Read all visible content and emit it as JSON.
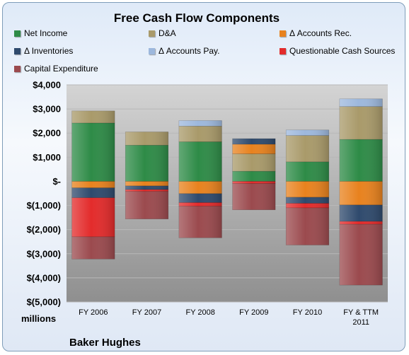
{
  "chart_data": {
    "type": "bar",
    "stacked": true,
    "title": "Free Cash Flow Components",
    "company": "Baker Hughes",
    "ylabel": "millions",
    "ylim": [
      -5000,
      4000
    ],
    "yticks": [
      4000,
      3000,
      2000,
      1000,
      0,
      -1000,
      -2000,
      -3000,
      -4000,
      -5000
    ],
    "ytick_labels": [
      "$4,000",
      "$3,000",
      "$2,000",
      "$1,000",
      "$-",
      "$(1,000)",
      "$(2,000)",
      "$(3,000)",
      "$(4,000)",
      "$(5,000)"
    ],
    "grid": true,
    "legend_position": "top",
    "categories": [
      [
        "FY 2006"
      ],
      [
        "FY 2007"
      ],
      [
        "FY 2008"
      ],
      [
        "FY 2009"
      ],
      [
        "FY 2010"
      ],
      [
        "FY & TTM",
        "2011"
      ]
    ],
    "series": [
      {
        "name": "Net Income",
        "color": "#2e8b47",
        "values": [
          2420,
          1500,
          1640,
          420,
          810,
          1740
        ]
      },
      {
        "name": "D&A",
        "color": "#a99a6a",
        "values": [
          500,
          550,
          650,
          720,
          1090,
          1360
        ]
      },
      {
        "name": "Δ Accounts Rec.",
        "color": "#e8821e",
        "values": [
          -270,
          -190,
          -510,
          400,
          -660,
          -980
        ]
      },
      {
        "name": "Δ Inventories",
        "color": "#2f4a6d",
        "values": [
          -410,
          -150,
          -370,
          230,
          -250,
          -680
        ]
      },
      {
        "name": "Δ Accounts Pay.",
        "color": "#9db8dd",
        "values": [
          0,
          0,
          230,
          0,
          230,
          320
        ]
      },
      {
        "name": "Questionable Cash Sources",
        "color": "#e32b2b",
        "values": [
          -1620,
          -80,
          -150,
          -90,
          -190,
          -120
        ]
      },
      {
        "name": "Capital Expenditure",
        "color": "#9b4a4e",
        "values": [
          -920,
          -1140,
          -1310,
          -1090,
          -1540,
          -2520
        ]
      }
    ]
  }
}
